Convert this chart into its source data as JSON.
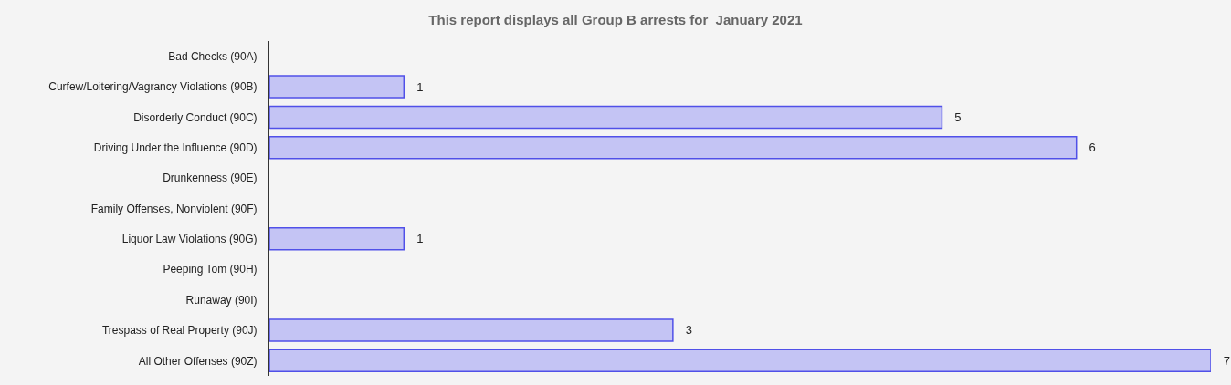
{
  "chart_data": {
    "type": "bar",
    "orientation": "horizontal",
    "title": "This report displays all Group B arrests for  January 2021",
    "categories": [
      "Bad Checks (90A)",
      "Curfew/Loitering/Vagrancy Violations (90B)",
      "Disorderly Conduct (90C)",
      "Driving Under the Influence (90D)",
      "Drunkenness (90E)",
      "Family Offenses, Nonviolent (90F)",
      "Liquor Law Violations (90G)",
      "Peeping Tom (90H)",
      "Runaway (90I)",
      "Trespass of Real Property (90J)",
      "All Other Offenses (90Z)"
    ],
    "values": [
      0,
      1,
      5,
      6,
      0,
      0,
      1,
      0,
      0,
      3,
      7
    ],
    "value_labels": [
      null,
      "1",
      "5",
      "6",
      null,
      null,
      "1",
      null,
      null,
      "3",
      "7"
    ],
    "color": "#c4c4f4",
    "xlim": [
      0,
      7
    ],
    "tick_labels": "y",
    "grid": false,
    "legend": false
  }
}
